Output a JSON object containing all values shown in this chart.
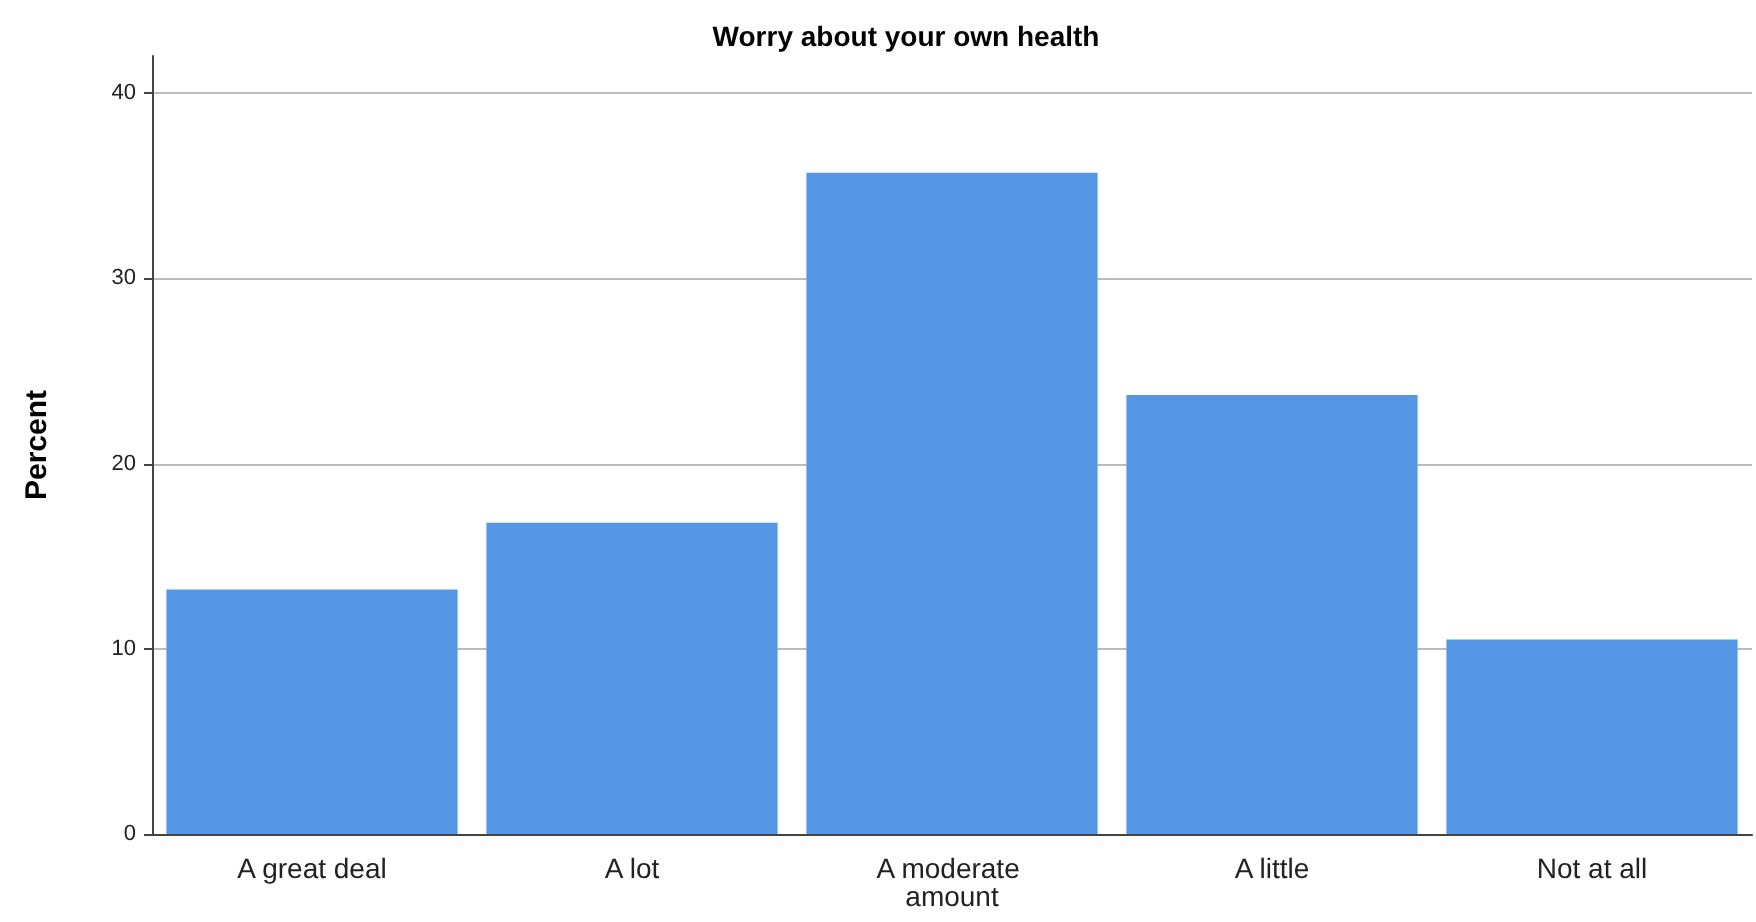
{
  "chart_data": {
    "type": "bar",
    "title": "Worry about your own health",
    "ylabel": "Percent",
    "categories": [
      "A great deal",
      "A lot",
      "A moderate amount",
      "A little",
      "Not at all"
    ],
    "values": [
      13.2,
      16.8,
      35.7,
      23.7,
      10.5
    ],
    "color": "#5597e5",
    "ylim": [
      0,
      42
    ],
    "yticks": [
      0,
      10,
      20,
      30,
      40
    ],
    "grid": "y"
  }
}
